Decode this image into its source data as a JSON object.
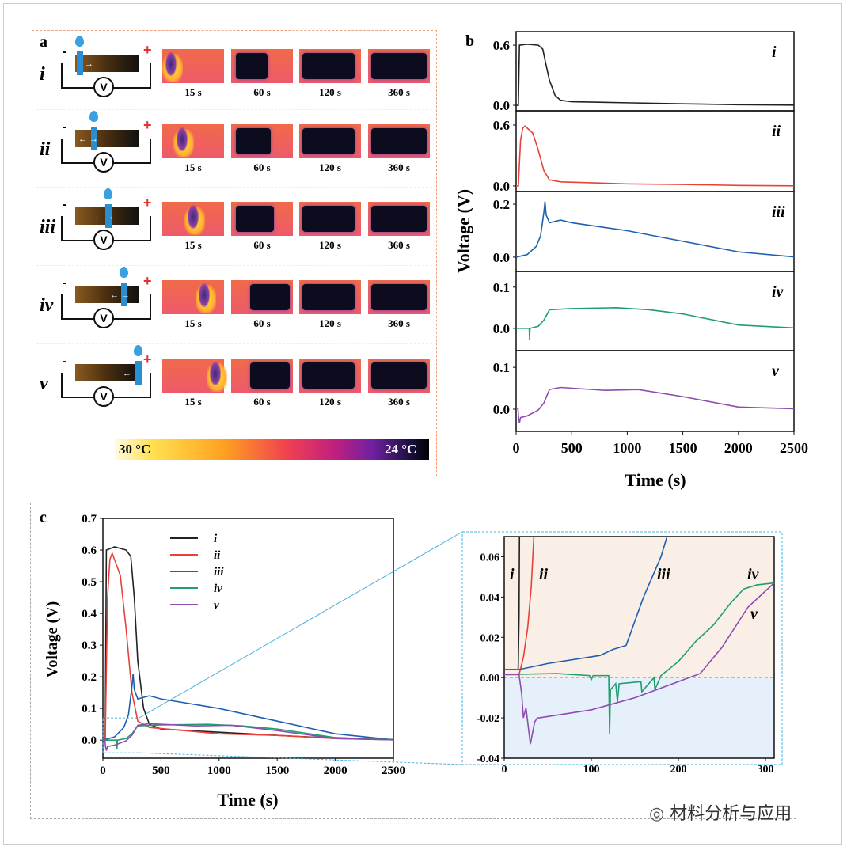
{
  "panel_a": {
    "label": "a",
    "rows": [
      "i",
      "ii",
      "iii",
      "iv",
      "v"
    ],
    "polarity": {
      "negative": "-",
      "positive": "+"
    },
    "voltmeter": "V",
    "times": [
      "15 s",
      "60 s",
      "120 s",
      "360 s"
    ],
    "colorbar": {
      "hot_label": "30 °C",
      "cold_label": "24 °C"
    }
  },
  "watermark": "材料分析与应用",
  "colors": {
    "i": "#222222",
    "ii": "#e8413a",
    "iii": "#1f5fb0",
    "iv": "#1f9e6e",
    "v": "#8e4bb0"
  },
  "chart_data": [
    {
      "panel": "b",
      "type": "line",
      "xlabel": "Time (s)",
      "ylabel": "Voltage (V)",
      "xlim": [
        0,
        2500
      ],
      "xticks": [
        0,
        500,
        1000,
        1500,
        2000,
        2500
      ],
      "subplots": [
        {
          "name": "i",
          "ylim": [
            -0.055,
            0.735
          ],
          "yticks": [
            0.0,
            0.6
          ],
          "x": [
            0,
            20,
            30,
            100,
            200,
            240,
            270,
            300,
            350,
            400,
            500,
            1000,
            1500,
            2000,
            2500
          ],
          "y": [
            0,
            0,
            0.6,
            0.61,
            0.6,
            0.56,
            0.4,
            0.25,
            0.1,
            0.05,
            0.035,
            0.025,
            0.015,
            0.006,
            0.002
          ]
        },
        {
          "name": "ii",
          "ylim": [
            -0.055,
            0.74
          ],
          "yticks": [
            0.0,
            0.6
          ],
          "x": [
            0,
            20,
            40,
            60,
            80,
            150,
            200,
            250,
            300,
            400,
            1000,
            1500,
            2000,
            2500
          ],
          "y": [
            0,
            0,
            0.45,
            0.57,
            0.59,
            0.52,
            0.35,
            0.15,
            0.06,
            0.04,
            0.02,
            0.015,
            0.005,
            0.001
          ]
        },
        {
          "name": "iii",
          "ylim": [
            -0.054,
            0.248
          ],
          "yticks": [
            0.0,
            0.2
          ],
          "x": [
            0,
            100,
            180,
            220,
            240,
            250,
            260,
            270,
            280,
            300,
            400,
            500,
            1000,
            1500,
            2000,
            2500
          ],
          "y": [
            0,
            0.01,
            0.04,
            0.08,
            0.14,
            0.17,
            0.21,
            0.16,
            0.15,
            0.13,
            0.14,
            0.13,
            0.1,
            0.06,
            0.02,
            0.001
          ]
        },
        {
          "name": "iv",
          "ylim": [
            -0.054,
            0.138
          ],
          "yticks": [
            0.0,
            0.1
          ],
          "x": [
            0,
            100,
            118,
            121,
            125,
            200,
            250,
            300,
            500,
            900,
            1200,
            1500,
            2000,
            2500
          ],
          "y": [
            0,
            0,
            0,
            -0.028,
            0,
            0.005,
            0.02,
            0.045,
            0.048,
            0.05,
            0.045,
            0.035,
            0.008,
            0.001
          ]
        },
        {
          "name": "v",
          "ylim": [
            -0.053,
            0.14
          ],
          "yticks": [
            0.0,
            0.1
          ],
          "x": [
            0,
            17,
            22,
            30,
            40,
            100,
            200,
            250,
            300,
            400,
            800,
            1100,
            1500,
            2000,
            2500
          ],
          "y": [
            0.002,
            0.002,
            -0.02,
            -0.033,
            -0.02,
            -0.016,
            -0.002,
            0.015,
            0.047,
            0.052,
            0.045,
            0.047,
            0.03,
            0.005,
            0.001
          ]
        }
      ]
    },
    {
      "panel": "c",
      "type": "line",
      "xlabel": "Time (s)",
      "ylabel": "Voltage (V)",
      "xlim": [
        0,
        2500
      ],
      "ylim": [
        -0.057,
        0.7
      ],
      "xticks": [
        0,
        500,
        1000,
        1500,
        2000,
        2500
      ],
      "yticks": [
        0.0,
        0.1,
        0.2,
        0.3,
        0.4,
        0.5,
        0.6,
        0.7
      ],
      "legend": "top-center",
      "series": [
        {
          "name": "i",
          "x": [
            0,
            20,
            30,
            100,
            200,
            240,
            270,
            300,
            350,
            400,
            500,
            1000,
            1500,
            2000,
            2500
          ],
          "y": [
            0,
            0,
            0.6,
            0.61,
            0.6,
            0.58,
            0.45,
            0.25,
            0.1,
            0.05,
            0.035,
            0.025,
            0.015,
            0.006,
            0.002
          ]
        },
        {
          "name": "ii",
          "x": [
            0,
            20,
            40,
            60,
            80,
            150,
            200,
            250,
            300,
            400,
            1000,
            1500,
            2000,
            2500
          ],
          "y": [
            0,
            0,
            0.45,
            0.57,
            0.59,
            0.52,
            0.35,
            0.15,
            0.06,
            0.04,
            0.02,
            0.015,
            0.005,
            0.001
          ]
        },
        {
          "name": "iii",
          "x": [
            0,
            100,
            180,
            220,
            240,
            250,
            260,
            270,
            280,
            300,
            400,
            500,
            1000,
            1500,
            2000,
            2500
          ],
          "y": [
            0,
            0.01,
            0.04,
            0.08,
            0.14,
            0.17,
            0.21,
            0.16,
            0.15,
            0.13,
            0.14,
            0.13,
            0.1,
            0.06,
            0.02,
            0.001
          ]
        },
        {
          "name": "iv",
          "x": [
            0,
            100,
            118,
            121,
            125,
            200,
            250,
            300,
            500,
            900,
            1200,
            1500,
            2000,
            2500
          ],
          "y": [
            0,
            0,
            0,
            -0.028,
            0,
            0.005,
            0.02,
            0.045,
            0.048,
            0.05,
            0.045,
            0.035,
            0.008,
            0.001
          ]
        },
        {
          "name": "v",
          "x": [
            0,
            17,
            22,
            30,
            40,
            100,
            200,
            250,
            300,
            400,
            800,
            1100,
            1500,
            2000,
            2500
          ],
          "y": [
            0.002,
            0.002,
            -0.02,
            -0.033,
            -0.02,
            -0.016,
            -0.002,
            0.015,
            0.047,
            0.052,
            0.045,
            0.047,
            0.03,
            0.005,
            0.001
          ]
        }
      ]
    },
    {
      "panel": "c-inset",
      "type": "line",
      "xlim": [
        0,
        310
      ],
      "ylim": [
        -0.04,
        0.07
      ],
      "xticks": [
        0,
        100,
        200,
        300
      ],
      "yticks": [
        -0.04,
        -0.02,
        0.0,
        0.02,
        0.04,
        0.06
      ],
      "series": [
        {
          "name": "i",
          "x": [
            0,
            16,
            17,
            17.5
          ],
          "y": [
            0.004,
            0.004,
            0.03,
            0.07
          ]
        },
        {
          "name": "ii",
          "x": [
            0,
            17,
            22,
            27,
            31,
            34
          ],
          "y": [
            0.0015,
            0.0015,
            0.01,
            0.025,
            0.045,
            0.07
          ]
        },
        {
          "name": "iii",
          "x": [
            0,
            17,
            50,
            110,
            125,
            140,
            150,
            160,
            170,
            180,
            187
          ],
          "y": [
            0.004,
            0.004,
            0.007,
            0.011,
            0.014,
            0.016,
            0.028,
            0.04,
            0.05,
            0.06,
            0.07
          ]
        },
        {
          "name": "iv",
          "x": [
            0,
            60,
            98,
            100,
            102,
            120,
            121,
            122,
            128,
            130,
            132,
            157,
            158,
            172,
            173,
            180,
            200,
            220,
            240,
            260,
            275,
            290,
            310
          ],
          "y": [
            0.0015,
            0.002,
            0.001,
            -0.001,
            0.001,
            0.001,
            -0.028,
            -0.006,
            -0.003,
            -0.012,
            -0.003,
            -0.002,
            -0.007,
            0.0,
            -0.006,
            0.001,
            0.008,
            0.018,
            0.026,
            0.037,
            0.044,
            0.046,
            0.047
          ]
        },
        {
          "name": "v",
          "x": [
            0,
            17,
            20,
            22,
            25,
            30,
            35,
            38,
            40,
            100,
            150,
            200,
            225,
            250,
            280,
            310
          ],
          "y": [
            0.0015,
            0.0015,
            -0.008,
            -0.02,
            -0.015,
            -0.033,
            -0.022,
            -0.02,
            -0.02,
            -0.016,
            -0.01,
            -0.002,
            0.002,
            0.015,
            0.035,
            0.047
          ]
        }
      ]
    }
  ]
}
